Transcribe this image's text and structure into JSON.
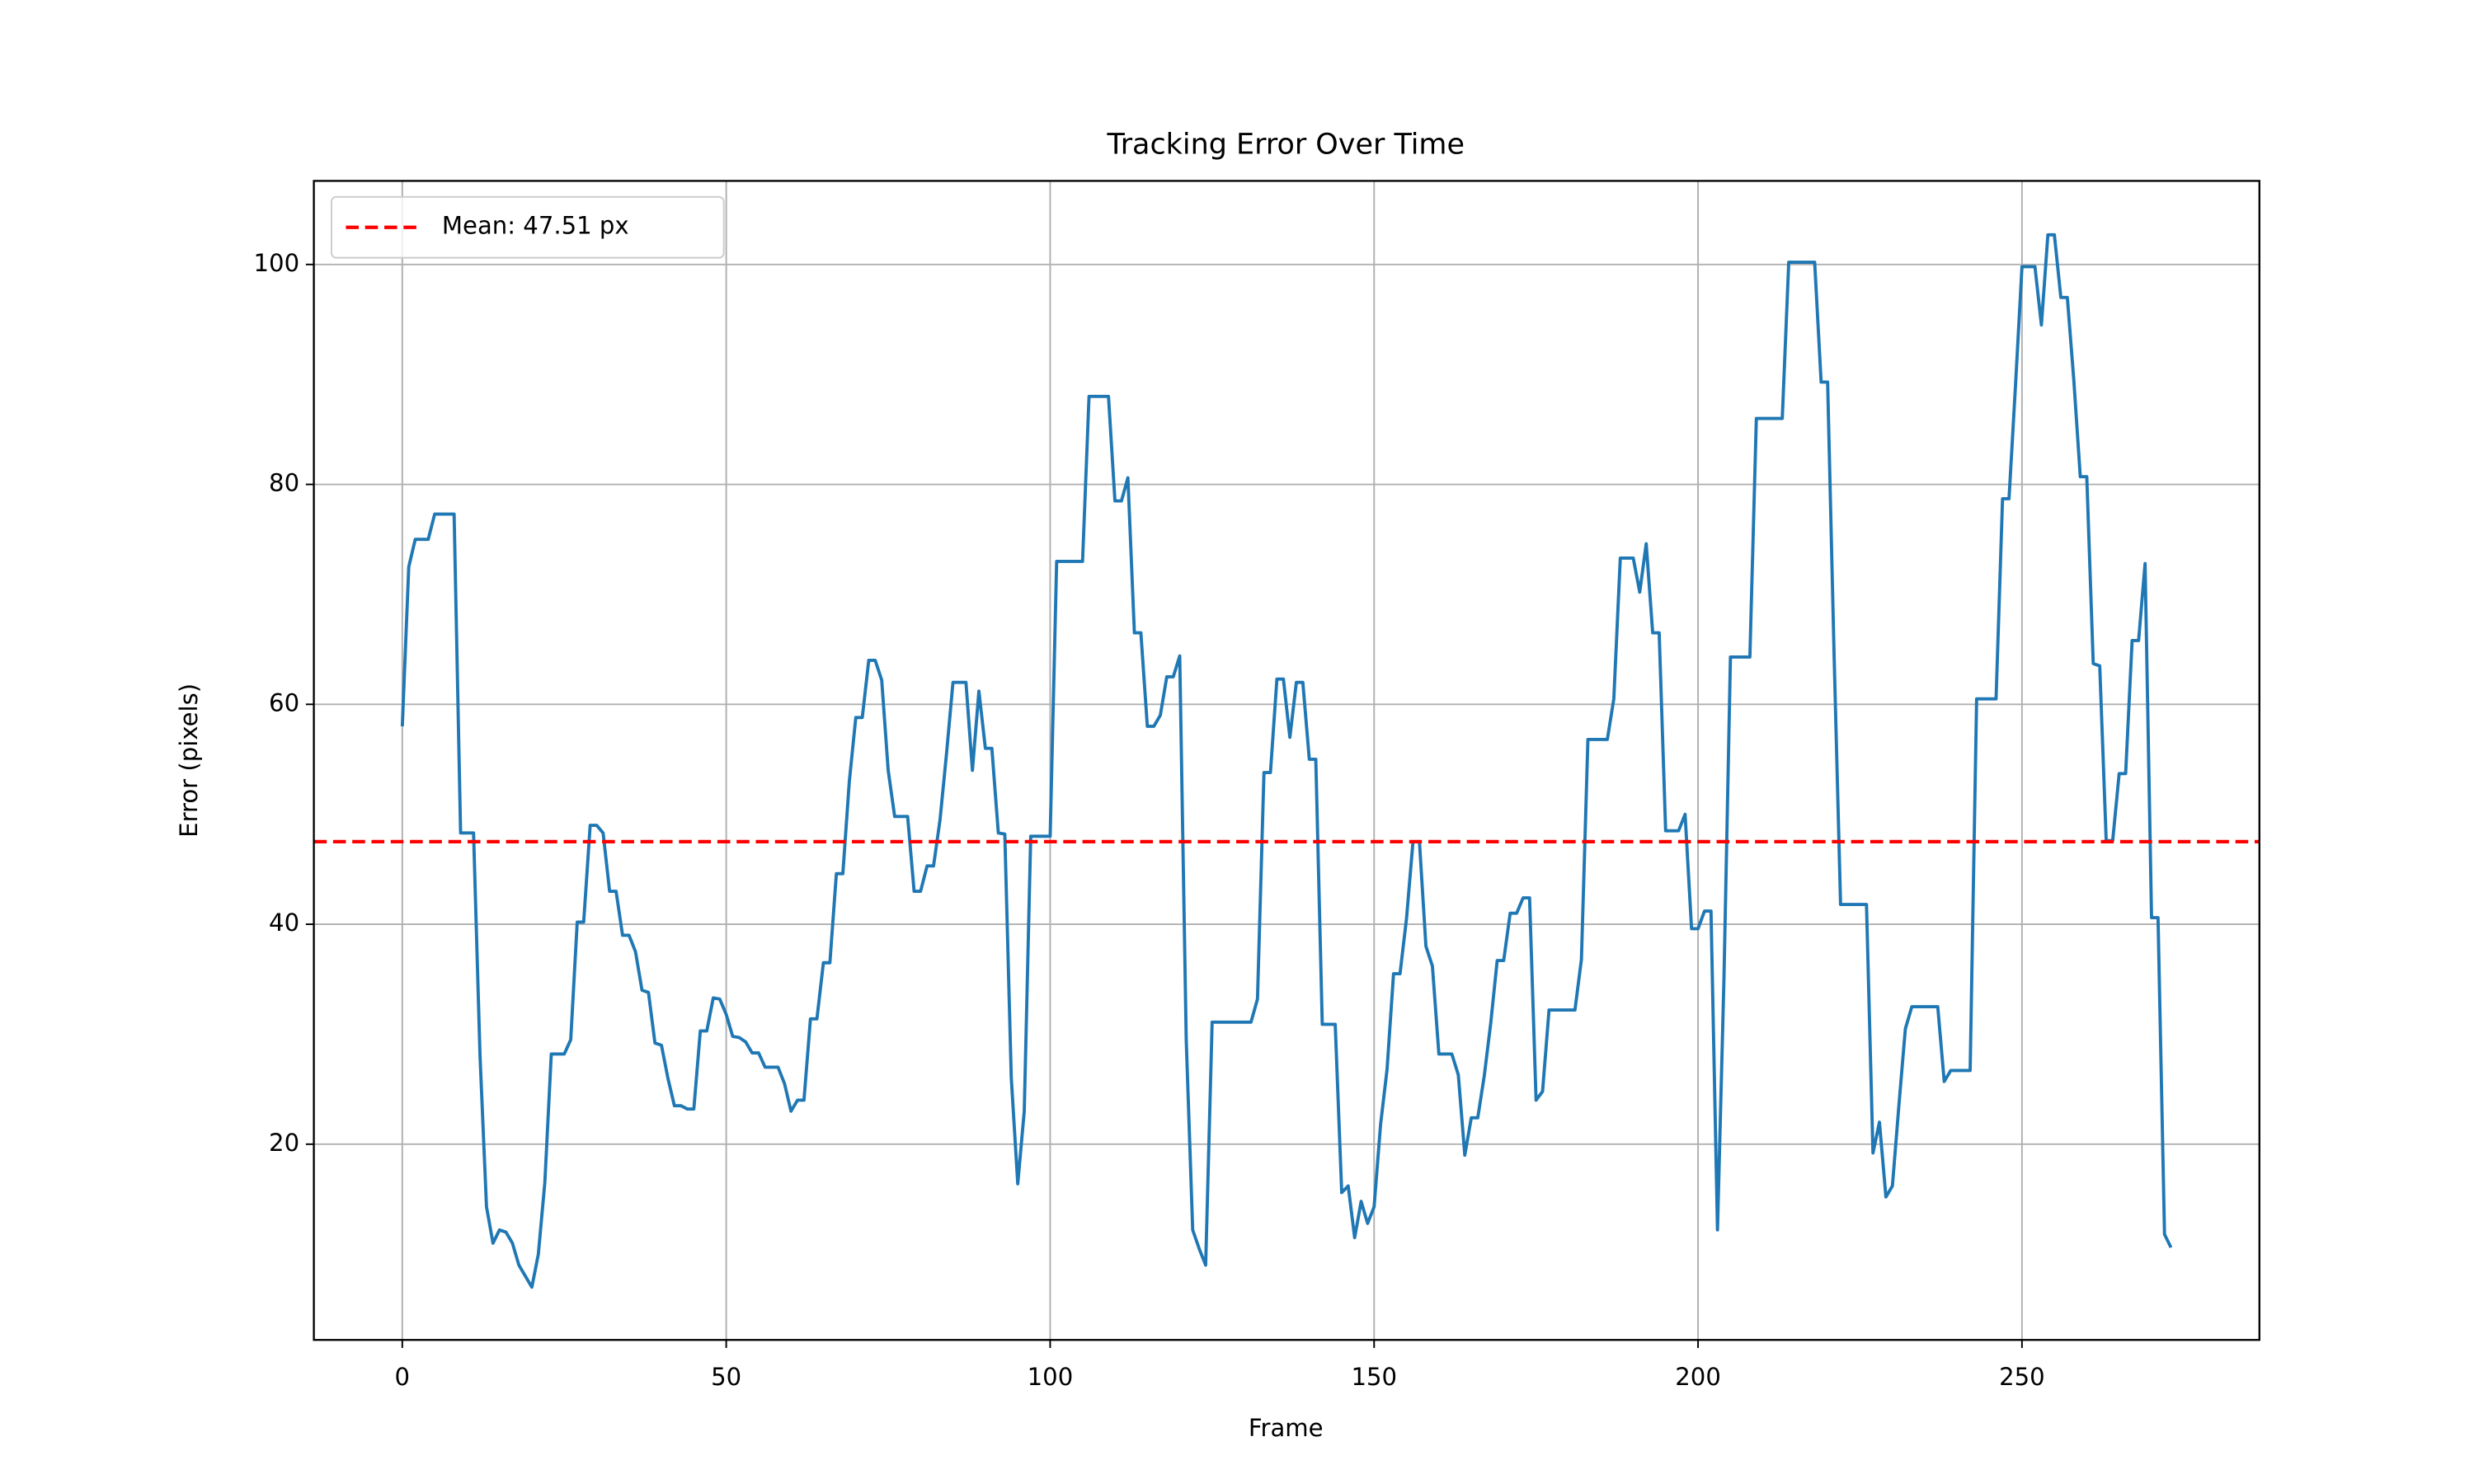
{
  "chart_data": {
    "type": "line",
    "title": "Tracking Error Over Time",
    "x_label": "Frame",
    "y_label": "Error (pixels)",
    "xlim": [
      -13.65,
      286.65
    ],
    "ylim": [
      2.2,
      107.6
    ],
    "xticks": [
      0,
      50,
      100,
      150,
      200,
      250
    ],
    "yticks": [
      20,
      40,
      60,
      80,
      100
    ],
    "grid": true,
    "legend_position": "upper-left",
    "mean_line": {
      "value": 47.51,
      "label": "Mean: 47.51 px",
      "color": "#ff0000"
    },
    "x": [
      0,
      1,
      2,
      3,
      4,
      5,
      6,
      7,
      8,
      9,
      10,
      11,
      12,
      13,
      14,
      15,
      16,
      17,
      18,
      19,
      20,
      21,
      22,
      23,
      24,
      25,
      26,
      27,
      28,
      29,
      30,
      31,
      32,
      33,
      34,
      35,
      36,
      37,
      38,
      39,
      40,
      41,
      42,
      43,
      44,
      45,
      46,
      47,
      48,
      49,
      50,
      51,
      52,
      53,
      54,
      55,
      56,
      57,
      58,
      59,
      60,
      61,
      62,
      63,
      64,
      65,
      66,
      67,
      68,
      69,
      70,
      71,
      72,
      73,
      74,
      75,
      76,
      77,
      78,
      79,
      80,
      81,
      82,
      83,
      84,
      85,
      86,
      87,
      88,
      89,
      90,
      91,
      92,
      93,
      94,
      95,
      96,
      97,
      98,
      99,
      100,
      101,
      102,
      103,
      104,
      105,
      106,
      107,
      108,
      109,
      110,
      111,
      112,
      113,
      114,
      115,
      116,
      117,
      118,
      119,
      120,
      121,
      122,
      123,
      124,
      125,
      126,
      127,
      128,
      129,
      130,
      131,
      132,
      133,
      134,
      135,
      136,
      137,
      138,
      139,
      140,
      141,
      142,
      143,
      144,
      145,
      146,
      147,
      148,
      149,
      150,
      151,
      152,
      153,
      154,
      155,
      156,
      157,
      158,
      159,
      160,
      161,
      162,
      163,
      164,
      165,
      166,
      167,
      168,
      169,
      170,
      171,
      172,
      173,
      174,
      175,
      176,
      177,
      178,
      179,
      180,
      181,
      182,
      183,
      184,
      185,
      186,
      187,
      188,
      189,
      190,
      191,
      192,
      193,
      194,
      195,
      196,
      197,
      198,
      199,
      200,
      201,
      202,
      203,
      204,
      205,
      206,
      207,
      208,
      209,
      210,
      211,
      212,
      213,
      214,
      215,
      216,
      217,
      218,
      219,
      220,
      221,
      222,
      223,
      224,
      225,
      226,
      227,
      228,
      229,
      230,
      231,
      232,
      233,
      234,
      235,
      236,
      237,
      238,
      239,
      240,
      241,
      242,
      243,
      244,
      245,
      246,
      247,
      248,
      249,
      250,
      251,
      252,
      253,
      254,
      255,
      256,
      257,
      258,
      259,
      260,
      261,
      262,
      263,
      264,
      265,
      266,
      267,
      268,
      269,
      270,
      271,
      272,
      273
    ],
    "series": [
      {
        "color": "#1f77b4",
        "values": [
          58,
          72.5,
          75,
          75,
          75,
          77.3,
          77.3,
          77.3,
          77.3,
          48.3,
          48.3,
          48.3,
          28,
          14.3,
          11,
          12.2,
          12,
          11,
          9,
          8,
          7,
          10,
          16.5,
          28.2,
          28.2,
          28.2,
          29.5,
          40.2,
          40.2,
          49,
          49,
          48.3,
          43,
          43,
          39,
          39,
          37.5,
          34,
          33.8,
          29.2,
          29,
          26,
          23.5,
          23.5,
          23.2,
          23.2,
          30.3,
          30.3,
          33.3,
          33.2,
          31.8,
          29.8,
          29.7,
          29.3,
          28.3,
          28.3,
          27,
          27,
          27,
          25.5,
          23,
          24,
          24,
          31.4,
          31.4,
          36.5,
          36.5,
          44.6,
          44.6,
          53,
          58.8,
          58.8,
          64,
          64,
          62.2,
          54,
          49.8,
          49.8,
          49.8,
          43,
          43,
          45.3,
          45.3,
          49.5,
          55.5,
          62,
          62,
          62,
          54,
          61.2,
          56,
          56,
          48.3,
          48.2,
          26,
          16.4,
          23,
          48,
          48,
          48,
          48,
          73,
          73,
          73,
          73,
          73,
          88,
          88,
          88,
          88,
          78.5,
          78.5,
          80.6,
          66.5,
          66.5,
          58,
          58,
          59,
          62.5,
          62.5,
          64.4,
          29.5,
          12.2,
          10.5,
          9,
          31.1,
          31.1,
          31.1,
          31.1,
          31.1,
          31.1,
          31.1,
          33.2,
          53.8,
          53.8,
          62.3,
          62.3,
          57,
          62,
          62,
          55,
          55,
          30.9,
          30.9,
          30.9,
          15.6,
          16.2,
          11.5,
          14.8,
          12.8,
          14.3,
          21.8,
          26.8,
          35.5,
          35.5,
          40.5,
          47.5,
          47.5,
          38,
          36.2,
          28.2,
          28.2,
          28.2,
          26.3,
          19,
          22.4,
          22.4,
          26.2,
          31,
          36.7,
          36.7,
          41,
          41,
          42.4,
          42.4,
          24,
          24.8,
          32.2,
          32.2,
          32.2,
          32.2,
          32.2,
          36.8,
          56.8,
          56.8,
          56.8,
          56.8,
          60.5,
          73.3,
          73.3,
          73.3,
          70.2,
          74.6,
          66.5,
          66.5,
          48.5,
          48.5,
          48.5,
          50,
          39.6,
          39.6,
          41.2,
          41.2,
          12.2,
          35,
          64.3,
          64.3,
          64.3,
          64.3,
          86,
          86,
          86,
          86,
          86,
          100.2,
          100.2,
          100.2,
          100.2,
          100.2,
          89.3,
          89.3,
          64.5,
          41.8,
          41.8,
          41.8,
          41.8,
          41.8,
          19.2,
          22,
          15.2,
          16.2,
          23.5,
          30.5,
          32.5,
          32.5,
          32.5,
          32.5,
          32.5,
          25.7,
          26.7,
          26.7,
          26.7,
          26.7,
          60.5,
          60.5,
          60.5,
          60.5,
          78.7,
          78.7,
          89,
          99.8,
          99.8,
          99.8,
          94.5,
          102.7,
          102.7,
          97,
          97,
          89.5,
          80.7,
          80.7,
          63.7,
          63.5,
          47.6,
          47.6,
          53.7,
          53.7,
          65.8,
          65.8,
          72.8,
          40.6,
          40.6,
          11.8,
          10.6
        ]
      }
    ]
  }
}
